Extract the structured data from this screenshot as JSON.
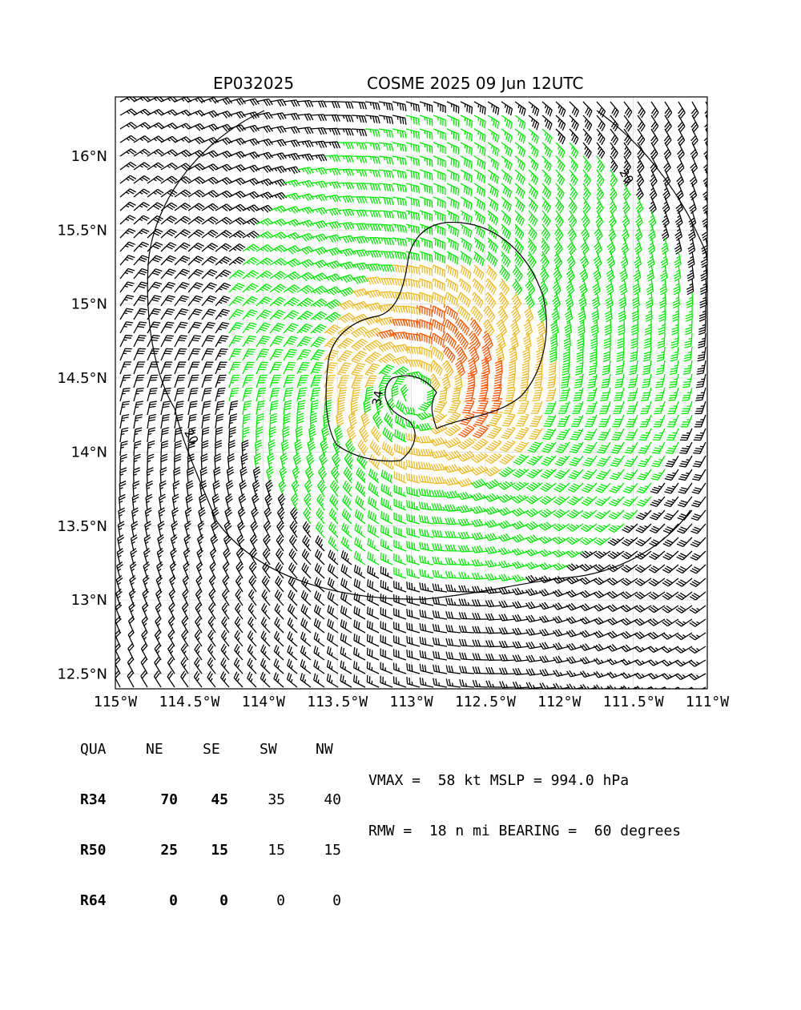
{
  "header": {
    "storm_id": "EP032025",
    "storm_info": "COSME 2025 09 Jun 12UTC"
  },
  "chart_data": {
    "type": "wind_barb_map",
    "xlim": [
      -115.0,
      -111.0
    ],
    "ylim": [
      12.4,
      16.4
    ],
    "x_ticks": [
      {
        "value": -115.0,
        "label": "115°W"
      },
      {
        "value": -114.5,
        "label": "114.5°W"
      },
      {
        "value": -114.0,
        "label": "114°W"
      },
      {
        "value": -113.5,
        "label": "113.5°W"
      },
      {
        "value": -113.0,
        "label": "113°W"
      },
      {
        "value": -112.5,
        "label": "112.5°W"
      },
      {
        "value": -112.0,
        "label": "112°W"
      },
      {
        "value": -111.5,
        "label": "111.5°W"
      },
      {
        "value": -111.0,
        "label": "111°W"
      }
    ],
    "y_ticks": [
      {
        "value": 12.5,
        "label": "12.5°N"
      },
      {
        "value": 13.0,
        "label": "13°N"
      },
      {
        "value": 13.5,
        "label": "13.5°N"
      },
      {
        "value": 14.0,
        "label": "14°N"
      },
      {
        "value": 14.5,
        "label": "14.5°N"
      },
      {
        "value": 15.0,
        "label": "15°N"
      },
      {
        "value": 15.5,
        "label": "15.5°N"
      },
      {
        "value": 16.0,
        "label": "16°N"
      }
    ],
    "grid": true,
    "center": {
      "lon": -112.97,
      "lat": 14.4
    },
    "wind_colors": {
      "below_34": "#000000",
      "34_to_50": "#00ee00",
      "50_to_64": "#eebb22",
      "above_64": "#ff5500"
    },
    "contours": [
      {
        "label": "20",
        "label_lon": -114.51,
        "label_lat": 14.09
      },
      {
        "label": "20",
        "label_lon": -111.57,
        "label_lat": 15.85
      },
      {
        "label": "34",
        "label_lon": -113.2,
        "label_lat": 14.36
      }
    ]
  },
  "table": {
    "headers": [
      "QUA",
      "NE",
      "SE",
      "SW",
      "NW"
    ],
    "rows": [
      {
        "quad": "R34",
        "values": [
          "70",
          "45",
          "35",
          "40"
        ]
      },
      {
        "quad": "R50",
        "values": [
          "25",
          "15",
          "15",
          "15"
        ]
      },
      {
        "quad": "R64",
        "values": [
          "0",
          "0",
          "0",
          "0"
        ]
      }
    ]
  },
  "stats": {
    "line1": "VMAX =  58 kt MSLP = 994.0 hPa",
    "line2": "RMW =  18 n mi BEARING =  60 degrees"
  }
}
